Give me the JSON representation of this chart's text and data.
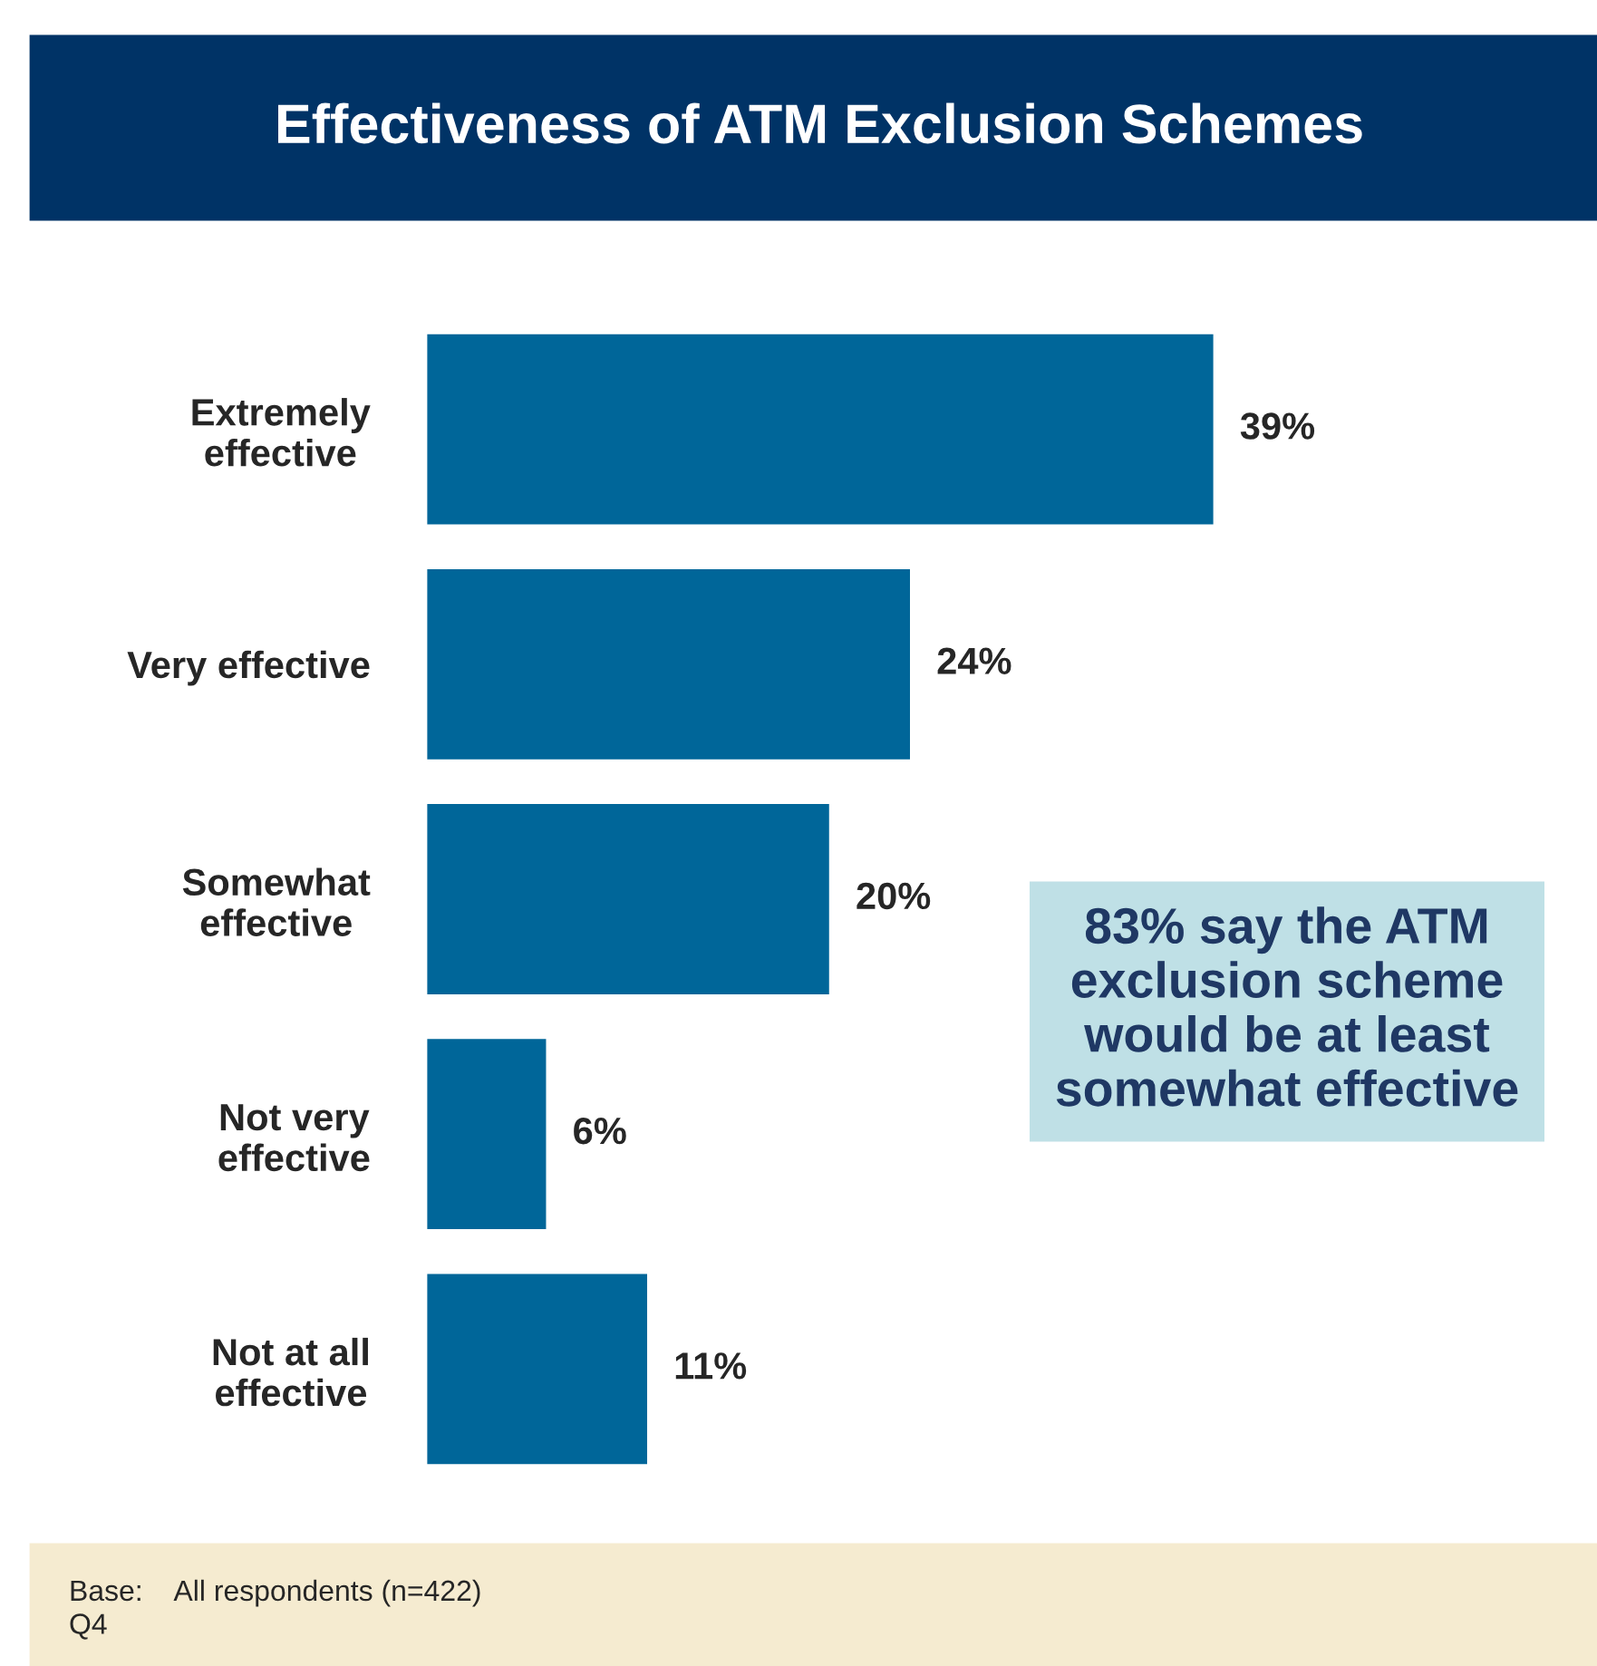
{
  "chart_data": {
    "type": "bar",
    "orientation": "horizontal",
    "title": "Effectiveness of ATM Exclusion Schemes",
    "categories": [
      "Extremely\neffective",
      "Very effective",
      "Somewhat\neffective",
      "Not very\neffective",
      "Not at all\neffective"
    ],
    "values": [
      39,
      24,
      20,
      6,
      11
    ],
    "value_labels": [
      "39%",
      "24%",
      "20%",
      "6%",
      "11%"
    ],
    "color": "#006699",
    "annotations": [
      "83% say the ATM\nexclusion scheme\nwould be at least\nsomewhat effective",
      "Base:    All respondents (n=422)\nQ4"
    ]
  }
}
